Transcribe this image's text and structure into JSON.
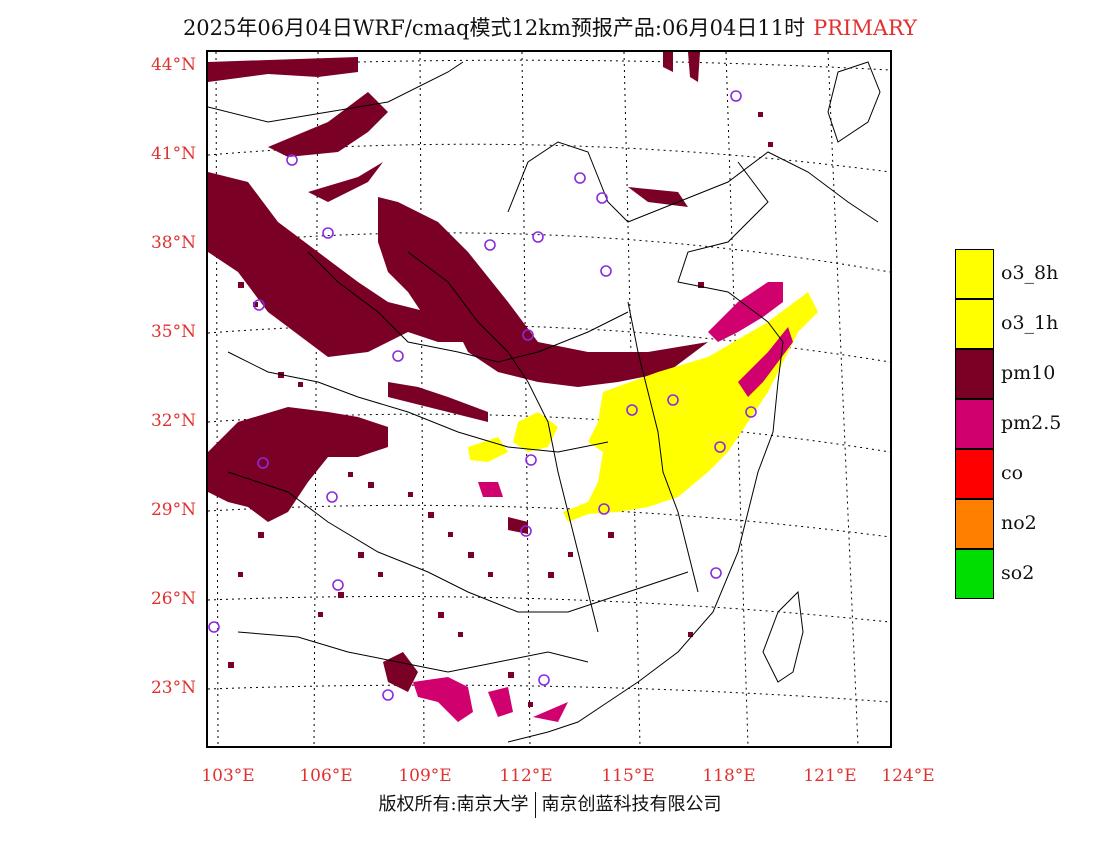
{
  "title": {
    "text": "2025年06月04日WRF/cmaq模式12km预报产品:06月04日11时",
    "tag": "PRIMARY"
  },
  "map": {
    "latitude_labels": [
      "44°N",
      "41°N",
      "38°N",
      "35°N",
      "32°N",
      "29°N",
      "26°N",
      "23°N"
    ],
    "longitude_labels": [
      "103°E",
      "106°E",
      "109°E",
      "112°E",
      "115°E",
      "118°E",
      "121°E",
      "124°E"
    ],
    "label_color": "#e0312f",
    "station_marker_color": "#8a2be2"
  },
  "legend": {
    "items": [
      {
        "label": "o3_8h",
        "color": "#ffff00"
      },
      {
        "label": "o3_1h",
        "color": "#ffff00"
      },
      {
        "label": "pm10",
        "color": "#7a0026"
      },
      {
        "label": "pm2.5",
        "color": "#d1006f"
      },
      {
        "label": "co",
        "color": "#ff0000"
      },
      {
        "label": "no2",
        "color": "#ff8000"
      },
      {
        "label": "so2",
        "color": "#00dd00"
      }
    ]
  },
  "footer": {
    "left": "版权所有:南京大学",
    "right": "南京创蓝科技有限公司"
  }
}
